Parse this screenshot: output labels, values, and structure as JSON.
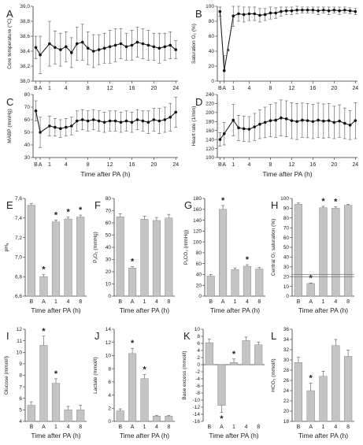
{
  "chart_data": [
    {
      "panel": "A",
      "type": "line",
      "ylabel": "Core temperature (°C)",
      "xticks": [
        "B",
        "A",
        "1",
        "4",
        "8",
        "12",
        "16",
        "20",
        "24"
      ],
      "ylim": [
        38.0,
        39.0
      ],
      "yticks": [
        "38,0",
        "38,2",
        "38,4",
        "38,6",
        "38,8",
        "39,0"
      ],
      "x": [
        "B",
        "A",
        1,
        2,
        3,
        4,
        5,
        6,
        7,
        8,
        9,
        10,
        11,
        12,
        13,
        14,
        15,
        16,
        17,
        18,
        19,
        20,
        21,
        22,
        23,
        24
      ],
      "values": [
        38.45,
        38.35,
        38.5,
        38.45,
        38.42,
        38.46,
        38.38,
        38.5,
        38.52,
        38.44,
        38.4,
        38.42,
        38.44,
        38.46,
        38.48,
        38.5,
        38.46,
        38.48,
        38.52,
        38.5,
        38.48,
        38.46,
        38.44,
        38.46,
        38.48,
        38.42
      ],
      "errors": [
        0.15,
        0.25,
        0.3,
        0.22,
        0.22,
        0.2,
        0.2,
        0.22,
        0.24,
        0.22,
        0.22,
        0.2,
        0.2,
        0.22,
        0.22,
        0.2,
        0.18,
        0.2,
        0.2,
        0.2,
        0.2,
        0.18,
        0.2,
        0.18,
        0.18,
        0.12
      ]
    },
    {
      "panel": "B",
      "type": "line",
      "ylabel": "Saturation O₂ (%)",
      "xticks": [
        "B",
        "A",
        "1",
        "4",
        "8",
        "12",
        "16",
        "20",
        "24"
      ],
      "ylim": [
        0,
        100
      ],
      "yticks": [
        "0",
        "20",
        "40",
        "60",
        "80",
        "100"
      ],
      "annotations": [
        "*"
      ],
      "x": [
        "B",
        "A",
        1,
        2,
        3,
        4,
        5,
        6,
        7,
        8,
        9,
        10,
        11,
        12,
        13,
        14,
        15,
        16,
        17,
        18,
        19,
        20,
        21,
        22,
        23,
        24
      ],
      "values": [
        93,
        14,
        87,
        90,
        89,
        90,
        90,
        88,
        89,
        91,
        91,
        93,
        94,
        94,
        95,
        95,
        95,
        95,
        94,
        95,
        94,
        95,
        94,
        95,
        94,
        93
      ],
      "errors": [
        6,
        20,
        14,
        10,
        10,
        9,
        9,
        9,
        8,
        8,
        7,
        6,
        5,
        5,
        5,
        4,
        4,
        4,
        5,
        4,
        5,
        4,
        5,
        4,
        4,
        4
      ]
    },
    {
      "panel": "C",
      "type": "line",
      "ylabel": "MABP (mmHg)",
      "xlabel": "Time after PA (h)",
      "xticks": [
        "B",
        "A",
        "1",
        "4",
        "8",
        "12",
        "16",
        "20",
        "24"
      ],
      "ylim": [
        30,
        80
      ],
      "yticks": [
        "30",
        "40",
        "50",
        "60",
        "70",
        "80"
      ],
      "x": [
        "B",
        "A",
        1,
        2,
        3,
        4,
        5,
        6,
        7,
        8,
        9,
        10,
        11,
        12,
        13,
        14,
        15,
        16,
        17,
        18,
        19,
        20,
        21,
        22,
        23,
        24
      ],
      "values": [
        67,
        50,
        55,
        54,
        53,
        54,
        55,
        59,
        60,
        59,
        60,
        59,
        58,
        59,
        59,
        58,
        59,
        58,
        60,
        59,
        58,
        60,
        59,
        60,
        62,
        66
      ],
      "errors": [
        8,
        12,
        8,
        7,
        7,
        7,
        7,
        8,
        8,
        8,
        8,
        8,
        8,
        8,
        8,
        8,
        8,
        8,
        8,
        8,
        9,
        9,
        10,
        10,
        11,
        12
      ]
    },
    {
      "panel": "D",
      "type": "line",
      "ylabel": "Heart rate (1/min)",
      "xlabel": "Time after PA (h)",
      "xticks": [
        "B",
        "A",
        "1",
        "4",
        "8",
        "12",
        "16",
        "20",
        "24"
      ],
      "ylim": [
        100,
        240
      ],
      "yticks": [
        "100",
        "120",
        "140",
        "160",
        "180",
        "200",
        "220",
        "240"
      ],
      "x": [
        "B",
        "A",
        1,
        2,
        3,
        4,
        5,
        6,
        7,
        8,
        9,
        10,
        11,
        12,
        13,
        14,
        15,
        16,
        17,
        18,
        19,
        20,
        21,
        22,
        23,
        24
      ],
      "values": [
        140,
        153,
        183,
        166,
        164,
        163,
        168,
        174,
        178,
        182,
        183,
        188,
        186,
        182,
        180,
        183,
        182,
        180,
        183,
        181,
        182,
        178,
        181,
        176,
        172,
        182
      ],
      "errors": [
        15,
        25,
        35,
        28,
        28,
        28,
        30,
        32,
        34,
        36,
        38,
        40,
        40,
        40,
        40,
        38,
        38,
        38,
        38,
        38,
        38,
        36,
        36,
        34,
        32,
        40
      ]
    },
    {
      "panel": "E",
      "type": "bar",
      "ylabel": "pHₐ",
      "xlabel": "Time after PA (h)",
      "categories": [
        "B",
        "A",
        "1",
        "4",
        "8"
      ],
      "ylim": [
        6.6,
        7.6
      ],
      "yticks": [
        "6,6",
        "6,8",
        "7,0",
        "7,2",
        "7,4",
        "7,6"
      ],
      "values": [
        7.53,
        6.8,
        7.36,
        7.39,
        7.41
      ],
      "errors": [
        0.02,
        0.02,
        0.02,
        0.02,
        0.02
      ],
      "marks": [
        "",
        "*",
        "*",
        "*",
        "*"
      ]
    },
    {
      "panel": "F",
      "type": "bar",
      "ylabel": "PₐO₂ (mmHg)",
      "xlabel": "Time after PA (h)",
      "categories": [
        "B",
        "A",
        "1",
        "4",
        "8"
      ],
      "ylim": [
        0,
        80
      ],
      "yticks": [
        "0",
        "10",
        "20",
        "30",
        "40",
        "50",
        "60",
        "70",
        "80"
      ],
      "values": [
        65,
        23,
        63,
        62,
        64
      ],
      "errors": [
        2.5,
        1.2,
        2.5,
        2.5,
        3
      ],
      "marks": [
        "",
        "*",
        "",
        "",
        ""
      ]
    },
    {
      "panel": "G",
      "type": "bar",
      "ylabel": "PₐCO₂ (mmHg)",
      "xlabel": "Time after PA (h)",
      "categories": [
        "B",
        "A",
        "1",
        "4",
        "8"
      ],
      "ylim": [
        0,
        180
      ],
      "yticks": [
        "0",
        "20",
        "40",
        "60",
        "80",
        "100",
        "120",
        "140",
        "160",
        "180"
      ],
      "values": [
        37,
        160,
        49,
        55,
        50
      ],
      "errors": [
        3,
        7,
        3,
        3,
        3
      ],
      "marks": [
        "",
        "*",
        "",
        "*",
        ""
      ]
    },
    {
      "panel": "H",
      "type": "bar",
      "ylabel": "Central O₂ saturation (%)",
      "xlabel": "Time after PA (h)",
      "categories": [
        "B",
        "A",
        "1",
        "4",
        "8"
      ],
      "ylim": [
        0,
        100
      ],
      "yticks": [
        "0",
        "10",
        "20",
        "30",
        "40",
        "50",
        "60",
        "70",
        "80",
        "90",
        "100"
      ],
      "axis_break": true,
      "values": [
        94,
        13,
        90.5,
        90,
        93
      ],
      "errors": [
        1.5,
        0.5,
        1.5,
        1.5,
        1
      ],
      "marks": [
        "",
        "*",
        "*",
        "*",
        ""
      ]
    },
    {
      "panel": "I",
      "type": "bar",
      "ylabel": "Glucose (mmol/l)",
      "xlabel": "Time after PA (h)",
      "categories": [
        "B",
        "A",
        "1",
        "4",
        "8"
      ],
      "ylim": [
        4,
        12
      ],
      "yticks": [
        "4",
        "5",
        "6",
        "7",
        "8",
        "9",
        "10",
        "11",
        "12"
      ],
      "values": [
        5.4,
        10.6,
        7.3,
        5.0,
        5.0
      ],
      "errors": [
        0.3,
        0.8,
        0.4,
        0.3,
        0.4
      ],
      "marks": [
        "",
        "*",
        "*",
        "",
        ""
      ]
    },
    {
      "panel": "J",
      "type": "bar",
      "ylabel": "Lactate (mmol/l)",
      "xlabel": "Time after PA (h)",
      "categories": [
        "B",
        "A",
        "1",
        "4",
        "8"
      ],
      "ylim": [
        0,
        14
      ],
      "yticks": [
        "0",
        "2",
        "4",
        "6",
        "8",
        "10",
        "12",
        "14"
      ],
      "values": [
        1.6,
        10.3,
        6.5,
        0.8,
        0.8
      ],
      "errors": [
        0.3,
        0.8,
        0.6,
        0.1,
        0.1
      ],
      "marks": [
        "",
        "*",
        "*",
        "",
        ""
      ]
    },
    {
      "panel": "K",
      "type": "bar",
      "ylabel": "Base excess (mmol/l)",
      "xlabel": "Time after PA (h)",
      "categories": [
        "B",
        "A",
        "1",
        "4",
        "8"
      ],
      "ylim": [
        -16,
        10
      ],
      "yticks": [
        "-16",
        "-14",
        "-12",
        "-10",
        "-8",
        "-6",
        "-4",
        "-2",
        "0",
        "2",
        "4",
        "6",
        "8",
        "10"
      ],
      "values": [
        6.2,
        -11.5,
        0.6,
        6.8,
        5.6
      ],
      "errors": [
        1,
        2,
        1,
        1,
        0.8
      ],
      "marks": [
        "",
        "*",
        "*",
        "",
        ""
      ]
    },
    {
      "panel": "L",
      "type": "bar",
      "ylabel": "HCO₃ (mmol/l)",
      "xlabel": "Time after PA (h)",
      "categories": [
        "B",
        "A",
        "1",
        "4",
        "8"
      ],
      "ylim": [
        18,
        36
      ],
      "yticks": [
        "18",
        "20",
        "22",
        "24",
        "26",
        "28",
        "30",
        "32",
        "34",
        "36"
      ],
      "values": [
        29.5,
        24,
        26.8,
        32.8,
        30.7
      ],
      "errors": [
        1,
        1.5,
        1,
        1.2,
        1.2
      ],
      "marks": [
        "",
        "*",
        "",
        "",
        ""
      ]
    }
  ]
}
